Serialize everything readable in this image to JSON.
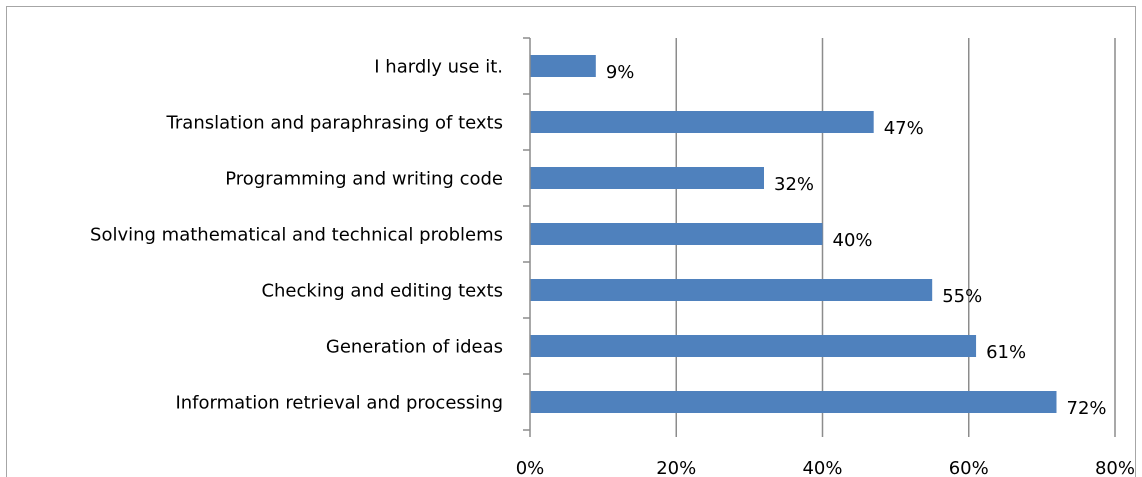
{
  "chart_data": {
    "type": "bar",
    "orientation": "horizontal",
    "categories": [
      "I hardly use it.",
      "Translation and paraphrasing of texts",
      "Programming and writing code",
      "Solving mathematical and technical problems",
      "Checking and editing texts",
      "Generation of ideas",
      "Information retrieval and processing"
    ],
    "values": [
      9,
      47,
      32,
      40,
      55,
      61,
      72
    ],
    "data_labels": [
      "9%",
      "47%",
      "32%",
      "40%",
      "55%",
      "61%",
      "72%"
    ],
    "xlim": [
      0,
      80
    ],
    "x_ticks": [
      0,
      20,
      40,
      60,
      80
    ],
    "x_tick_labels": [
      "0%",
      "20%",
      "40%",
      "60%",
      "80%"
    ],
    "grid": true,
    "legend": "none",
    "bar_color": "#4f81bd",
    "gridline_color": "#8c8c8c"
  }
}
